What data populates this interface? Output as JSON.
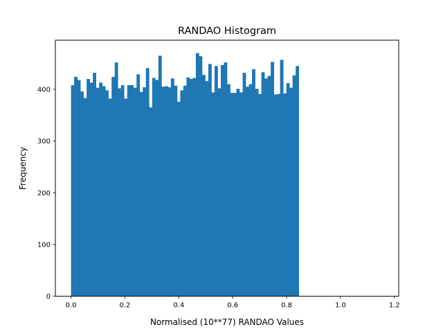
{
  "chart_data": {
    "type": "bar",
    "subtype": "histogram",
    "title": "RANDAO Histogram",
    "xlabel": "Normalised (10**77) RANDAO Values",
    "ylabel": "Frequency",
    "xlim": [
      -0.058,
      1.216
    ],
    "ylim": [
      0,
      495
    ],
    "bin_start": 0.0,
    "bin_width": 0.01158,
    "values": [
      408,
      424,
      418,
      396,
      383,
      420,
      413,
      432,
      403,
      413,
      406,
      398,
      382,
      424,
      452,
      402,
      408,
      382,
      408,
      408,
      403,
      429,
      395,
      404,
      441,
      365,
      422,
      418,
      465,
      405,
      406,
      404,
      421,
      407,
      376,
      398,
      407,
      423,
      420,
      422,
      470,
      464,
      428,
      416,
      449,
      394,
      445,
      402,
      447,
      452,
      410,
      393,
      393,
      401,
      394,
      432,
      405,
      410,
      439,
      401,
      391,
      433,
      421,
      426,
      453,
      390,
      391,
      457,
      392,
      412,
      403,
      427,
      445
    ],
    "xticks": [
      0.0,
      0.2,
      0.4,
      0.6,
      0.8,
      1.0,
      1.2
    ],
    "xtick_labels": [
      "0.0",
      "0.2",
      "0.4",
      "0.6",
      "0.8",
      "1.0",
      "1.2"
    ],
    "yticks": [
      0,
      100,
      200,
      300,
      400
    ],
    "ytick_labels": [
      "0",
      "100",
      "200",
      "300",
      "400"
    ],
    "bar_color": "#1f77b4",
    "axis_color": "#000000",
    "background": "#ffffff"
  }
}
